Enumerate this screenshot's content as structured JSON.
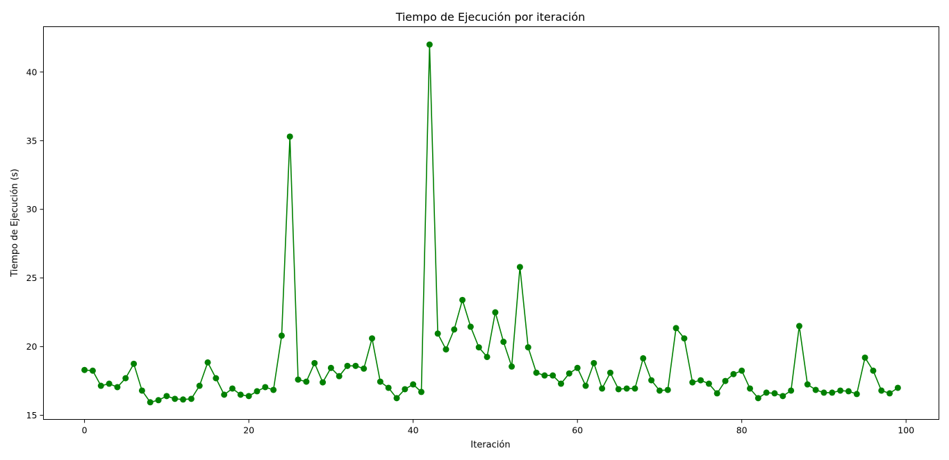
{
  "chart_data": {
    "type": "line",
    "title": "Tiempo de Ejecución por iteración",
    "xlabel": "Iteración",
    "ylabel": "Tiempo de Ejecución (s)",
    "xlim": [
      -5,
      104
    ],
    "ylim": [
      14.7,
      43.3
    ],
    "xticks": [
      0,
      20,
      40,
      60,
      80,
      100
    ],
    "yticks": [
      15,
      20,
      25,
      30,
      35,
      40
    ],
    "grid": false,
    "marker": "circle",
    "series": [
      {
        "color": "#008000",
        "x": [
          0,
          1,
          2,
          3,
          4,
          5,
          6,
          7,
          8,
          9,
          10,
          11,
          12,
          13,
          14,
          15,
          16,
          17,
          18,
          19,
          20,
          21,
          22,
          23,
          24,
          25,
          26,
          27,
          28,
          29,
          30,
          31,
          32,
          33,
          34,
          35,
          36,
          37,
          38,
          39,
          40,
          41,
          42,
          43,
          44,
          45,
          46,
          47,
          48,
          49,
          50,
          51,
          52,
          53,
          54,
          55,
          56,
          57,
          58,
          59,
          60,
          61,
          62,
          63,
          64,
          65,
          66,
          67,
          68,
          69,
          70,
          71,
          72,
          73,
          74,
          75,
          76,
          77,
          78,
          79,
          80,
          81,
          82,
          83,
          84,
          85,
          86,
          87,
          88,
          89,
          90,
          91,
          92,
          93,
          94,
          95,
          96,
          97,
          98,
          99
        ],
        "values": [
          18.3,
          18.25,
          17.15,
          17.3,
          17.05,
          17.7,
          18.75,
          16.8,
          15.95,
          16.1,
          16.4,
          16.2,
          16.15,
          16.2,
          17.15,
          18.85,
          17.7,
          16.5,
          16.95,
          16.5,
          16.4,
          16.75,
          17.05,
          16.85,
          20.8,
          35.3,
          17.6,
          17.45,
          18.8,
          17.4,
          18.45,
          17.85,
          18.6,
          18.6,
          18.4,
          20.6,
          17.45,
          17.0,
          16.25,
          16.9,
          17.25,
          16.7,
          42.0,
          20.95,
          19.8,
          21.25,
          23.4,
          21.45,
          19.95,
          19.25,
          22.5,
          20.35,
          18.55,
          25.8,
          19.95,
          18.1,
          17.9,
          17.9,
          17.3,
          18.05,
          18.45,
          17.15,
          18.8,
          16.95,
          18.1,
          16.9,
          16.95,
          16.95,
          19.15,
          17.55,
          16.8,
          16.85,
          21.35,
          20.6,
          17.4,
          17.55,
          17.3,
          16.6,
          17.5,
          18.0,
          18.25,
          16.95,
          16.25,
          16.65,
          16.6,
          16.4,
          16.8,
          21.5,
          17.25,
          16.85,
          16.65,
          16.65,
          16.8,
          16.75,
          16.55,
          19.2,
          18.25,
          16.8,
          16.6,
          17.0
        ]
      }
    ]
  }
}
